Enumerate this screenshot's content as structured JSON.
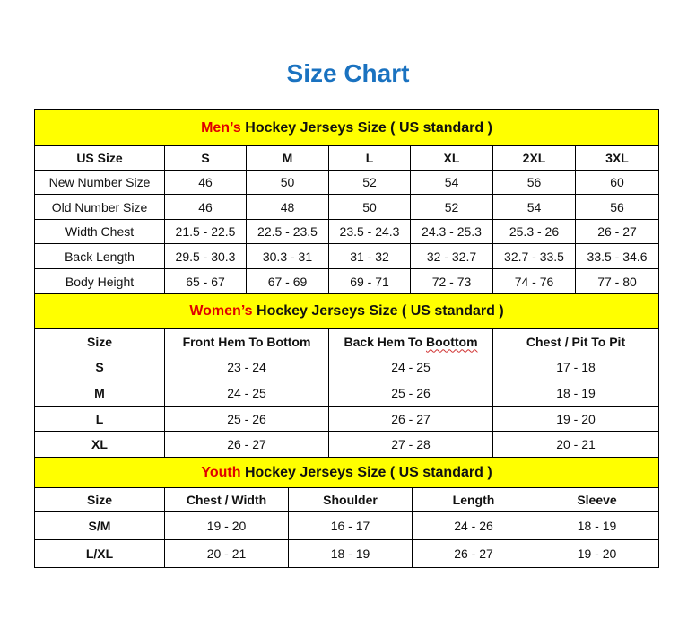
{
  "title": "Size Chart",
  "colors": {
    "title": "#1a72c0",
    "section_bg": "#ffff00",
    "highlight": "#e00000"
  },
  "men": {
    "header_highlight": "Men’s",
    "header_rest": " Hockey Jerseys Size ( US standard )",
    "columns": [
      "US Size",
      "S",
      "M",
      "L",
      "XL",
      "2XL",
      "3XL"
    ],
    "rows": [
      [
        "New Number Size",
        "46",
        "50",
        "52",
        "54",
        "56",
        "60"
      ],
      [
        "Old Number Size",
        "46",
        "48",
        "50",
        "52",
        "54",
        "56"
      ],
      [
        "Width Chest",
        "21.5 - 22.5",
        "22.5 - 23.5",
        "23.5 - 24.3",
        "24.3 - 25.3",
        "25.3 - 26",
        "26 - 27"
      ],
      [
        "Back Length",
        "29.5 - 30.3",
        "30.3 - 31",
        "31 - 32",
        "32 - 32.7",
        "32.7 - 33.5",
        "33.5 - 34.6"
      ],
      [
        "Body Height",
        "65 - 67",
        "67 - 69",
        "69 - 71",
        "72 - 73",
        "74 - 76",
        "77 - 80"
      ]
    ]
  },
  "women": {
    "header_highlight": "Women’s",
    "header_rest": " Hockey Jerseys Size ( US standard )",
    "columns": [
      "Size",
      "Front Hem To Bottom",
      "Back Hem To Boottom",
      "Chest / Pit To Pit"
    ],
    "rows": [
      [
        "S",
        "23 - 24",
        "24 - 25",
        "17 - 18"
      ],
      [
        "M",
        "24 - 25",
        "25 - 26",
        "18 - 19"
      ],
      [
        "L",
        "25 - 26",
        "26 - 27",
        "19 - 20"
      ],
      [
        "XL",
        "26 - 27",
        "27 - 28",
        "20 - 21"
      ]
    ]
  },
  "youth": {
    "header_highlight": "Youth",
    "header_rest": " Hockey Jerseys Size ( US standard )",
    "columns": [
      "Size",
      "Chest / Width",
      "Shoulder",
      "Length",
      "Sleeve"
    ],
    "rows": [
      [
        "S/M",
        "19 - 20",
        "16 - 17",
        "24 - 26",
        "18 - 19"
      ],
      [
        "L/XL",
        "20 - 21",
        "18 - 19",
        "26 - 27",
        "19 - 20"
      ]
    ]
  }
}
